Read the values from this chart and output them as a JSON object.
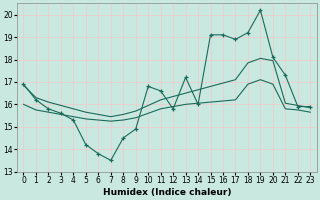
{
  "xlabel": "Humidex (Indice chaleur)",
  "xlim": [
    -0.5,
    23.5
  ],
  "ylim": [
    13,
    20.5
  ],
  "yticks": [
    13,
    14,
    15,
    16,
    17,
    18,
    19,
    20
  ],
  "xticks": [
    0,
    1,
    2,
    3,
    4,
    5,
    6,
    7,
    8,
    9,
    10,
    11,
    12,
    13,
    14,
    15,
    16,
    17,
    18,
    19,
    20,
    21,
    22,
    23
  ],
  "bg_color": "#c8e8e0",
  "grid_color": "#e8d0d0",
  "line_color": "#1a6b5a",
  "line1_x": [
    0,
    1,
    2,
    3,
    4,
    5,
    6,
    7,
    8,
    9,
    10,
    11,
    12,
    13,
    14,
    15,
    16,
    17,
    18,
    19,
    20,
    21,
    22,
    23
  ],
  "line1_y": [
    16.9,
    16.2,
    15.8,
    15.6,
    15.3,
    14.2,
    13.8,
    13.5,
    14.5,
    14.9,
    16.8,
    16.6,
    15.8,
    17.2,
    16.0,
    19.1,
    19.1,
    18.9,
    19.2,
    20.2,
    18.1,
    17.3,
    15.9,
    15.9
  ],
  "line2_x": [
    0,
    1,
    2,
    3,
    4,
    5,
    6,
    7,
    8,
    9,
    10,
    11,
    12,
    13,
    14,
    15,
    16,
    17,
    18,
    19,
    20,
    21,
    22,
    23
  ],
  "line2_y": [
    16.85,
    16.3,
    16.1,
    15.95,
    15.8,
    15.65,
    15.55,
    15.45,
    15.55,
    15.7,
    15.95,
    16.2,
    16.35,
    16.5,
    16.65,
    16.8,
    16.95,
    17.1,
    17.85,
    18.05,
    17.95,
    16.05,
    15.95,
    15.85
  ],
  "line3_x": [
    0,
    1,
    2,
    3,
    4,
    5,
    6,
    7,
    8,
    9,
    10,
    11,
    12,
    13,
    14,
    15,
    16,
    17,
    18,
    19,
    20,
    21,
    22,
    23
  ],
  "line3_y": [
    16.0,
    15.75,
    15.65,
    15.55,
    15.45,
    15.35,
    15.3,
    15.25,
    15.3,
    15.4,
    15.6,
    15.8,
    15.9,
    16.0,
    16.05,
    16.1,
    16.15,
    16.2,
    16.9,
    17.1,
    16.9,
    15.8,
    15.75,
    15.65
  ]
}
